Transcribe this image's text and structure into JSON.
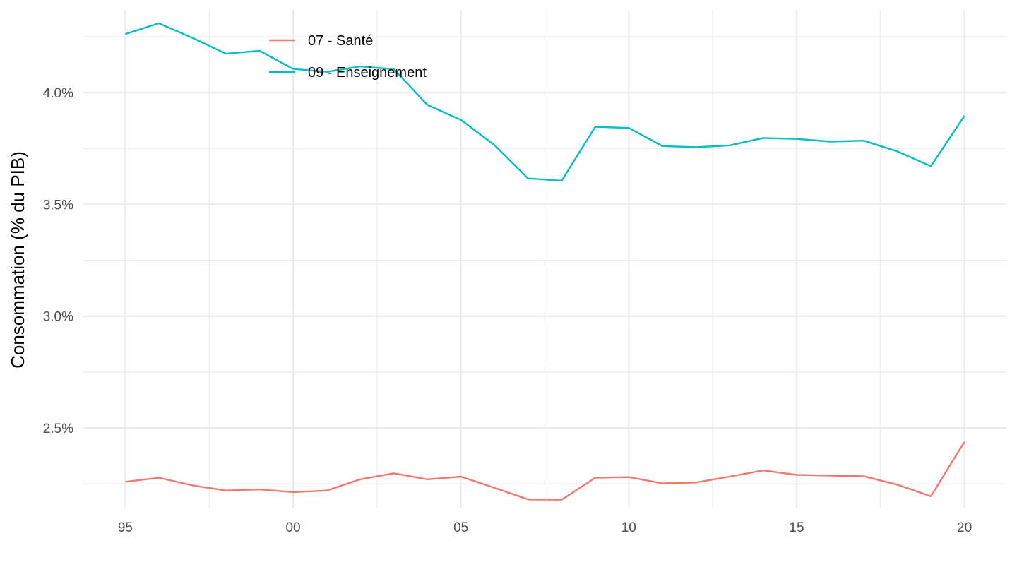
{
  "chart_data": {
    "type": "line",
    "title": "",
    "xlabel": "",
    "ylabel": "Consommation (% du PIB)",
    "x": [
      1995,
      1996,
      1997,
      1998,
      1999,
      2000,
      2001,
      2002,
      2003,
      2004,
      2005,
      2006,
      2007,
      2008,
      2009,
      2010,
      2011,
      2012,
      2013,
      2014,
      2015,
      2016,
      2017,
      2018,
      2019,
      2020
    ],
    "x_ticks": [
      {
        "value": 1995,
        "label": "95"
      },
      {
        "value": 2000,
        "label": "00"
      },
      {
        "value": 2005,
        "label": "05"
      },
      {
        "value": 2010,
        "label": "10"
      },
      {
        "value": 2015,
        "label": "15"
      },
      {
        "value": 2020,
        "label": "20"
      }
    ],
    "y_ticks": [
      {
        "value": 0.025,
        "label": "2.5%"
      },
      {
        "value": 0.03,
        "label": "3.0%"
      },
      {
        "value": 0.035,
        "label": "3.5%"
      },
      {
        "value": 0.04,
        "label": "4.0%"
      }
    ],
    "xlim": [
      1993.75,
      2021.25
    ],
    "ylim": [
      0.0214,
      0.0437
    ],
    "grid": true,
    "legend_position": "top-left",
    "series": [
      {
        "name": "07 - Santé",
        "color": "#F8766D",
        "values": [
          0.02259,
          0.02277,
          0.02243,
          0.0222,
          0.02225,
          0.02213,
          0.0222,
          0.0227,
          0.02297,
          0.0227,
          0.02282,
          0.02232,
          0.0218,
          0.02179,
          0.02277,
          0.0228,
          0.02252,
          0.02256,
          0.02282,
          0.0231,
          0.0229,
          0.02287,
          0.02284,
          0.02246,
          0.02194,
          0.02438
        ]
      },
      {
        "name": "09 - Enseignement",
        "color": "#00BFC4",
        "values": [
          0.04262,
          0.0431,
          0.04245,
          0.04174,
          0.04187,
          0.04106,
          0.04093,
          0.04117,
          0.04105,
          0.03945,
          0.03878,
          0.03765,
          0.03616,
          0.03606,
          0.03847,
          0.03842,
          0.03761,
          0.03756,
          0.03764,
          0.03797,
          0.03793,
          0.03781,
          0.03785,
          0.03737,
          0.03671,
          0.03896
        ]
      }
    ]
  }
}
